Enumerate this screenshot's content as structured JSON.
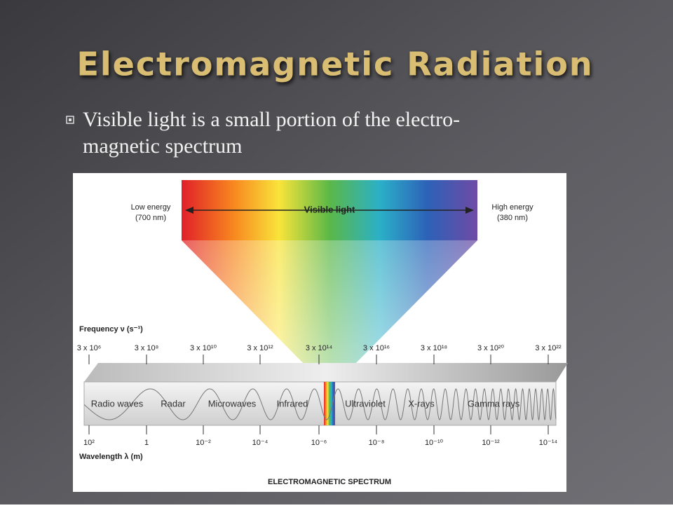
{
  "slide": {
    "title": "Electromagnetic Radiation",
    "bullet": [
      "Visible light is a small portion of the electro-",
      "magnetic spectrum"
    ],
    "diagram": {
      "low_energy": [
        "Low energy",
        "(700 nm)"
      ],
      "visible_light": "Visible light",
      "high_energy": [
        "High energy",
        "(380 nm)"
      ],
      "frequency_label": "Frequency ν (s⁻¹)",
      "frequency_ticks": [
        "3 x 10⁶",
        "3 x 10⁸",
        "3 x 10¹⁰",
        "3 x 10¹²",
        "3 x 10¹⁴",
        "3 x 10¹⁶",
        "3 x 10¹⁸",
        "3 x 10²⁰",
        "3 x 10²²"
      ],
      "regions": [
        "Radio waves",
        "Radar",
        "Microwaves",
        "Infrared",
        "Ultraviolet",
        "X-rays",
        "Gamma rays"
      ],
      "wavelength_ticks": [
        "10²",
        "1",
        "10⁻²",
        "10⁻⁴",
        "10⁻⁶",
        "10⁻⁸",
        "10⁻¹⁰",
        "10⁻¹²",
        "10⁻¹⁴"
      ],
      "wavelength_label": "Wavelength λ (m)",
      "caption": "ELECTROMAGNETIC SPECTRUM"
    }
  }
}
